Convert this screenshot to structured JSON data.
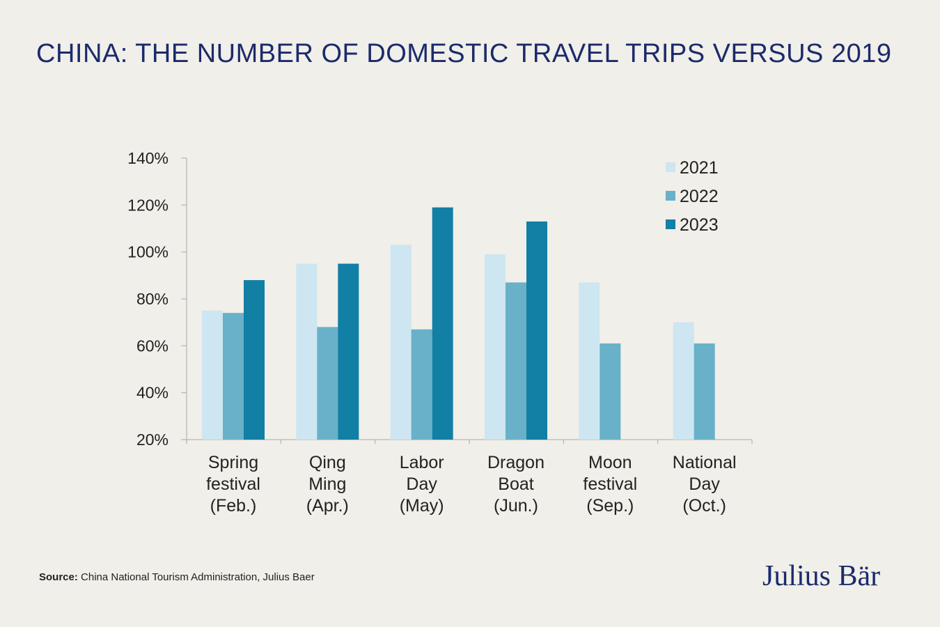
{
  "title": "CHINA: THE NUMBER OF DOMESTIC TRAVEL TRIPS VERSUS 2019",
  "source": {
    "prefix": "Source:",
    "text": " China National Tourism Administration, Julius Baer"
  },
  "logo": "Julius Bär",
  "colors": {
    "background": "#f0efe9",
    "title": "#1c2a6b",
    "s2021": "#cde6f1",
    "s2022": "#68b1c8",
    "s2023": "#127fa5"
  },
  "chart_data": {
    "type": "bar",
    "title": "CHINA: THE NUMBER OF DOMESTIC TRAVEL TRIPS VERSUS 2019",
    "categories": [
      [
        "Spring",
        "festival",
        "(Feb.)"
      ],
      [
        "Qing",
        "Ming",
        "(Apr.)"
      ],
      [
        "Labor",
        "Day",
        "(May)"
      ],
      [
        "Dragon",
        "Boat",
        "(Jun.)"
      ],
      [
        "Moon",
        "festival",
        "(Sep.)"
      ],
      [
        "National",
        "Day",
        "(Oct.)"
      ]
    ],
    "series": [
      {
        "name": "2021",
        "color": "#cde6f1",
        "values": [
          75,
          95,
          103,
          99,
          87,
          70
        ]
      },
      {
        "name": "2022",
        "color": "#68b1c8",
        "values": [
          74,
          68,
          67,
          87,
          61,
          61
        ]
      },
      {
        "name": "2023",
        "color": "#127fa5",
        "values": [
          88,
          95,
          119,
          113,
          null,
          null
        ]
      }
    ],
    "yticks": [
      "20%",
      "40%",
      "60%",
      "80%",
      "100%",
      "120%",
      "140%"
    ],
    "ylim": [
      20,
      140
    ],
    "legend": "top-right",
    "grid": false
  }
}
